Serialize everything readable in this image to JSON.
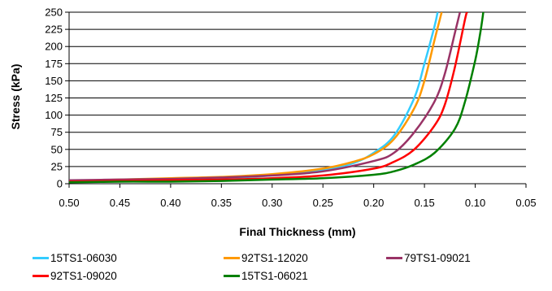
{
  "chart_data": {
    "type": "line",
    "xlabel": "Final Thickness (mm)",
    "ylabel": "Stress (kPa)",
    "xlim": [
      0.5,
      0.05
    ],
    "ylim": [
      0,
      250
    ],
    "x_reversed": true,
    "x_ticks": [
      "0.50",
      "0.45",
      "0.40",
      "0.35",
      "0.30",
      "0.25",
      "0.20",
      "0.15",
      "0.10",
      "0.05"
    ],
    "y_ticks": [
      "0",
      "25",
      "50",
      "75",
      "100",
      "125",
      "150",
      "175",
      "200",
      "225",
      "250"
    ],
    "legend_position": "bottom",
    "series": [
      {
        "name": "15TS1-06030",
        "color": "#33CCFF",
        "points": [
          [
            0.5,
            3
          ],
          [
            0.45,
            5
          ],
          [
            0.4,
            6
          ],
          [
            0.35,
            8
          ],
          [
            0.3,
            12
          ],
          [
            0.25,
            20
          ],
          [
            0.22,
            30
          ],
          [
            0.2,
            45
          ],
          [
            0.18,
            70
          ],
          [
            0.16,
            125
          ],
          [
            0.15,
            175
          ],
          [
            0.14,
            230
          ],
          [
            0.137,
            250
          ]
        ]
      },
      {
        "name": "92TS1-12020",
        "color": "#FF9900",
        "points": [
          [
            0.5,
            4
          ],
          [
            0.45,
            6
          ],
          [
            0.4,
            8
          ],
          [
            0.35,
            10
          ],
          [
            0.3,
            14
          ],
          [
            0.25,
            22
          ],
          [
            0.22,
            32
          ],
          [
            0.2,
            43
          ],
          [
            0.18,
            65
          ],
          [
            0.16,
            110
          ],
          [
            0.15,
            150
          ],
          [
            0.14,
            210
          ],
          [
            0.133,
            250
          ]
        ]
      },
      {
        "name": "79TS1-09021",
        "color": "#993366",
        "points": [
          [
            0.5,
            5
          ],
          [
            0.45,
            6
          ],
          [
            0.4,
            7
          ],
          [
            0.35,
            9
          ],
          [
            0.3,
            12
          ],
          [
            0.25,
            18
          ],
          [
            0.2,
            33
          ],
          [
            0.18,
            45
          ],
          [
            0.16,
            75
          ],
          [
            0.14,
            120
          ],
          [
            0.13,
            160
          ],
          [
            0.12,
            220
          ],
          [
            0.115,
            250
          ]
        ]
      },
      {
        "name": "92TS1-09020",
        "color": "#FF0000",
        "points": [
          [
            0.5,
            3
          ],
          [
            0.45,
            4
          ],
          [
            0.4,
            5
          ],
          [
            0.35,
            6
          ],
          [
            0.3,
            8
          ],
          [
            0.25,
            12
          ],
          [
            0.2,
            22
          ],
          [
            0.18,
            32
          ],
          [
            0.16,
            50
          ],
          [
            0.14,
            85
          ],
          [
            0.13,
            115
          ],
          [
            0.12,
            170
          ],
          [
            0.11,
            240
          ],
          [
            0.108,
            250
          ]
        ]
      },
      {
        "name": "15TS1-06021",
        "color": "#008000",
        "points": [
          [
            0.5,
            2
          ],
          [
            0.45,
            3
          ],
          [
            0.4,
            3
          ],
          [
            0.35,
            4
          ],
          [
            0.3,
            6
          ],
          [
            0.25,
            8
          ],
          [
            0.2,
            13
          ],
          [
            0.18,
            18
          ],
          [
            0.16,
            28
          ],
          [
            0.14,
            45
          ],
          [
            0.12,
            80
          ],
          [
            0.11,
            120
          ],
          [
            0.1,
            180
          ],
          [
            0.095,
            220
          ],
          [
            0.092,
            250
          ]
        ]
      }
    ]
  }
}
